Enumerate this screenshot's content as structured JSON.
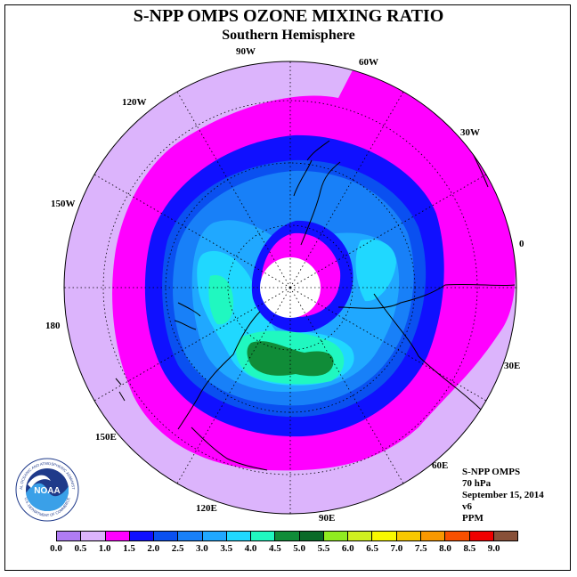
{
  "title": "S-NPP OMPS OZONE MIXING RATIO",
  "subtitle": "Southern Hemisphere",
  "longitude_labels": [
    "90W",
    "60W",
    "30W",
    "0",
    "30E",
    "60E",
    "90E",
    "120E",
    "150E",
    "180",
    "150W",
    "120W"
  ],
  "info": {
    "instrument": "S-NPP OMPS",
    "pressure_level": "70 hPa",
    "date": "September 15, 2014",
    "version": "v6",
    "units": "PPM"
  },
  "colorbar": {
    "ticks": [
      "0.0",
      "0.5",
      "1.0",
      "1.5",
      "2.0",
      "2.5",
      "3.0",
      "3.5",
      "4.0",
      "4.5",
      "5.0",
      "5.5",
      "6.0",
      "6.5",
      "7.0",
      "7.5",
      "8.0",
      "8.5",
      "9.0"
    ],
    "colors": [
      "#b07cf4",
      "#dcb4fc",
      "#ff00ff",
      "#1010ff",
      "#0a50f0",
      "#1880f8",
      "#20a8ff",
      "#20d8ff",
      "#20f8c0",
      "#108c38",
      "#0a6a28",
      "#90ec20",
      "#d0f020",
      "#f8f800",
      "#f8c800",
      "#f89800",
      "#f85000",
      "#f00000",
      "#885038"
    ]
  },
  "logo": {
    "text": "NOAA",
    "ring_text": "NATIONAL OCEANIC AND ATMOSPHERIC ADMINISTRATION",
    "ring_text_bottom": "U.S. DEPARTMENT OF COMMERCE"
  }
}
